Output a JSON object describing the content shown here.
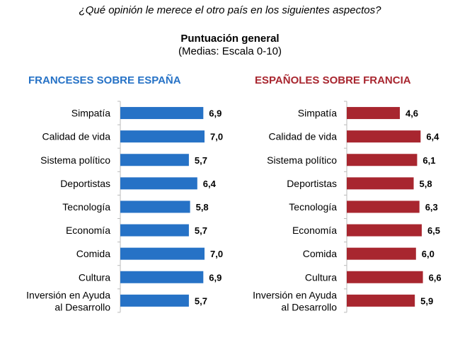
{
  "question": "¿Qué opinión le merece el otro país en los siguientes aspectos?",
  "title": "Puntuación general",
  "subtitle": "(Medias: Escala 0-10)",
  "chart_data": [
    {
      "type": "bar",
      "orientation": "horizontal",
      "title": "FRANCESES SOBRE ESPAÑA",
      "color": "#2672c6",
      "categories": [
        "Simpatía",
        "Calidad de vida",
        "Sistema político",
        "Deportistas",
        "Tecnología",
        "Economía",
        "Comida",
        "Cultura",
        "Inversión en Ayuda\nal Desarrollo"
      ],
      "values": [
        6.9,
        7.0,
        5.7,
        6.4,
        5.8,
        5.7,
        7.0,
        6.9,
        5.7
      ],
      "labels": [
        "6,9",
        "7,0",
        "5,7",
        "6,4",
        "5,8",
        "5,7",
        "7,0",
        "6,9",
        "5,7"
      ],
      "xlim": [
        0,
        10
      ]
    },
    {
      "type": "bar",
      "orientation": "horizontal",
      "title": "ESPAÑOLES SOBRE FRANCIA",
      "color": "#a8262f",
      "categories": [
        "Simpatía",
        "Calidad de vida",
        "Sistema político",
        "Deportistas",
        "Tecnología",
        "Economía",
        "Comida",
        "Cultura",
        "Inversión en Ayuda\nal Desarrollo"
      ],
      "values": [
        4.6,
        6.4,
        6.1,
        5.8,
        6.3,
        6.5,
        6.0,
        6.6,
        5.9
      ],
      "labels": [
        "4,6",
        "6,4",
        "6,1",
        "5,8",
        "6,3",
        "6,5",
        "6,0",
        "6,6",
        "5,9"
      ],
      "xlim": [
        0,
        10
      ]
    }
  ]
}
